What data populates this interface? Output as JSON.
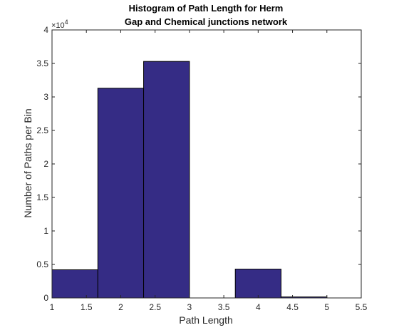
{
  "chart_data": {
    "type": "bar",
    "title": [
      "Histogram of Path Length for Herm",
      "Gap and Chemical junctions network"
    ],
    "xlabel": "Path Length",
    "ylabel": "Number of Paths per Bin",
    "xlim": [
      1,
      5.5
    ],
    "ylim": [
      0,
      40000
    ],
    "y_scale_label": {
      "base": "×10",
      "exponent": "4"
    },
    "x_ticks": [
      1,
      1.5,
      2,
      2.5,
      3,
      3.5,
      4,
      4.5,
      5,
      5.5
    ],
    "x_tick_labels": [
      "1",
      "1.5",
      "2",
      "2.5",
      "3",
      "3.5",
      "4",
      "4.5",
      "5",
      "5.5"
    ],
    "y_ticks": [
      0,
      5000,
      10000,
      15000,
      20000,
      25000,
      30000,
      35000,
      40000
    ],
    "y_tick_labels": [
      "0",
      "0.5",
      "1",
      "1.5",
      "2",
      "2.5",
      "3",
      "3.5",
      "4"
    ],
    "bins": [
      {
        "x0": 1.0,
        "x1": 1.667,
        "value": 4200
      },
      {
        "x0": 1.667,
        "x1": 2.333,
        "value": 31300
      },
      {
        "x0": 2.333,
        "x1": 3.0,
        "value": 35300
      },
      {
        "x0": 3.0,
        "x1": 3.667,
        "value": 0
      },
      {
        "x0": 3.667,
        "x1": 4.333,
        "value": 4300
      },
      {
        "x0": 4.333,
        "x1": 5.0,
        "value": 150
      }
    ],
    "bar_color": "#352c85",
    "edge_color": "#000000",
    "grid": false
  }
}
